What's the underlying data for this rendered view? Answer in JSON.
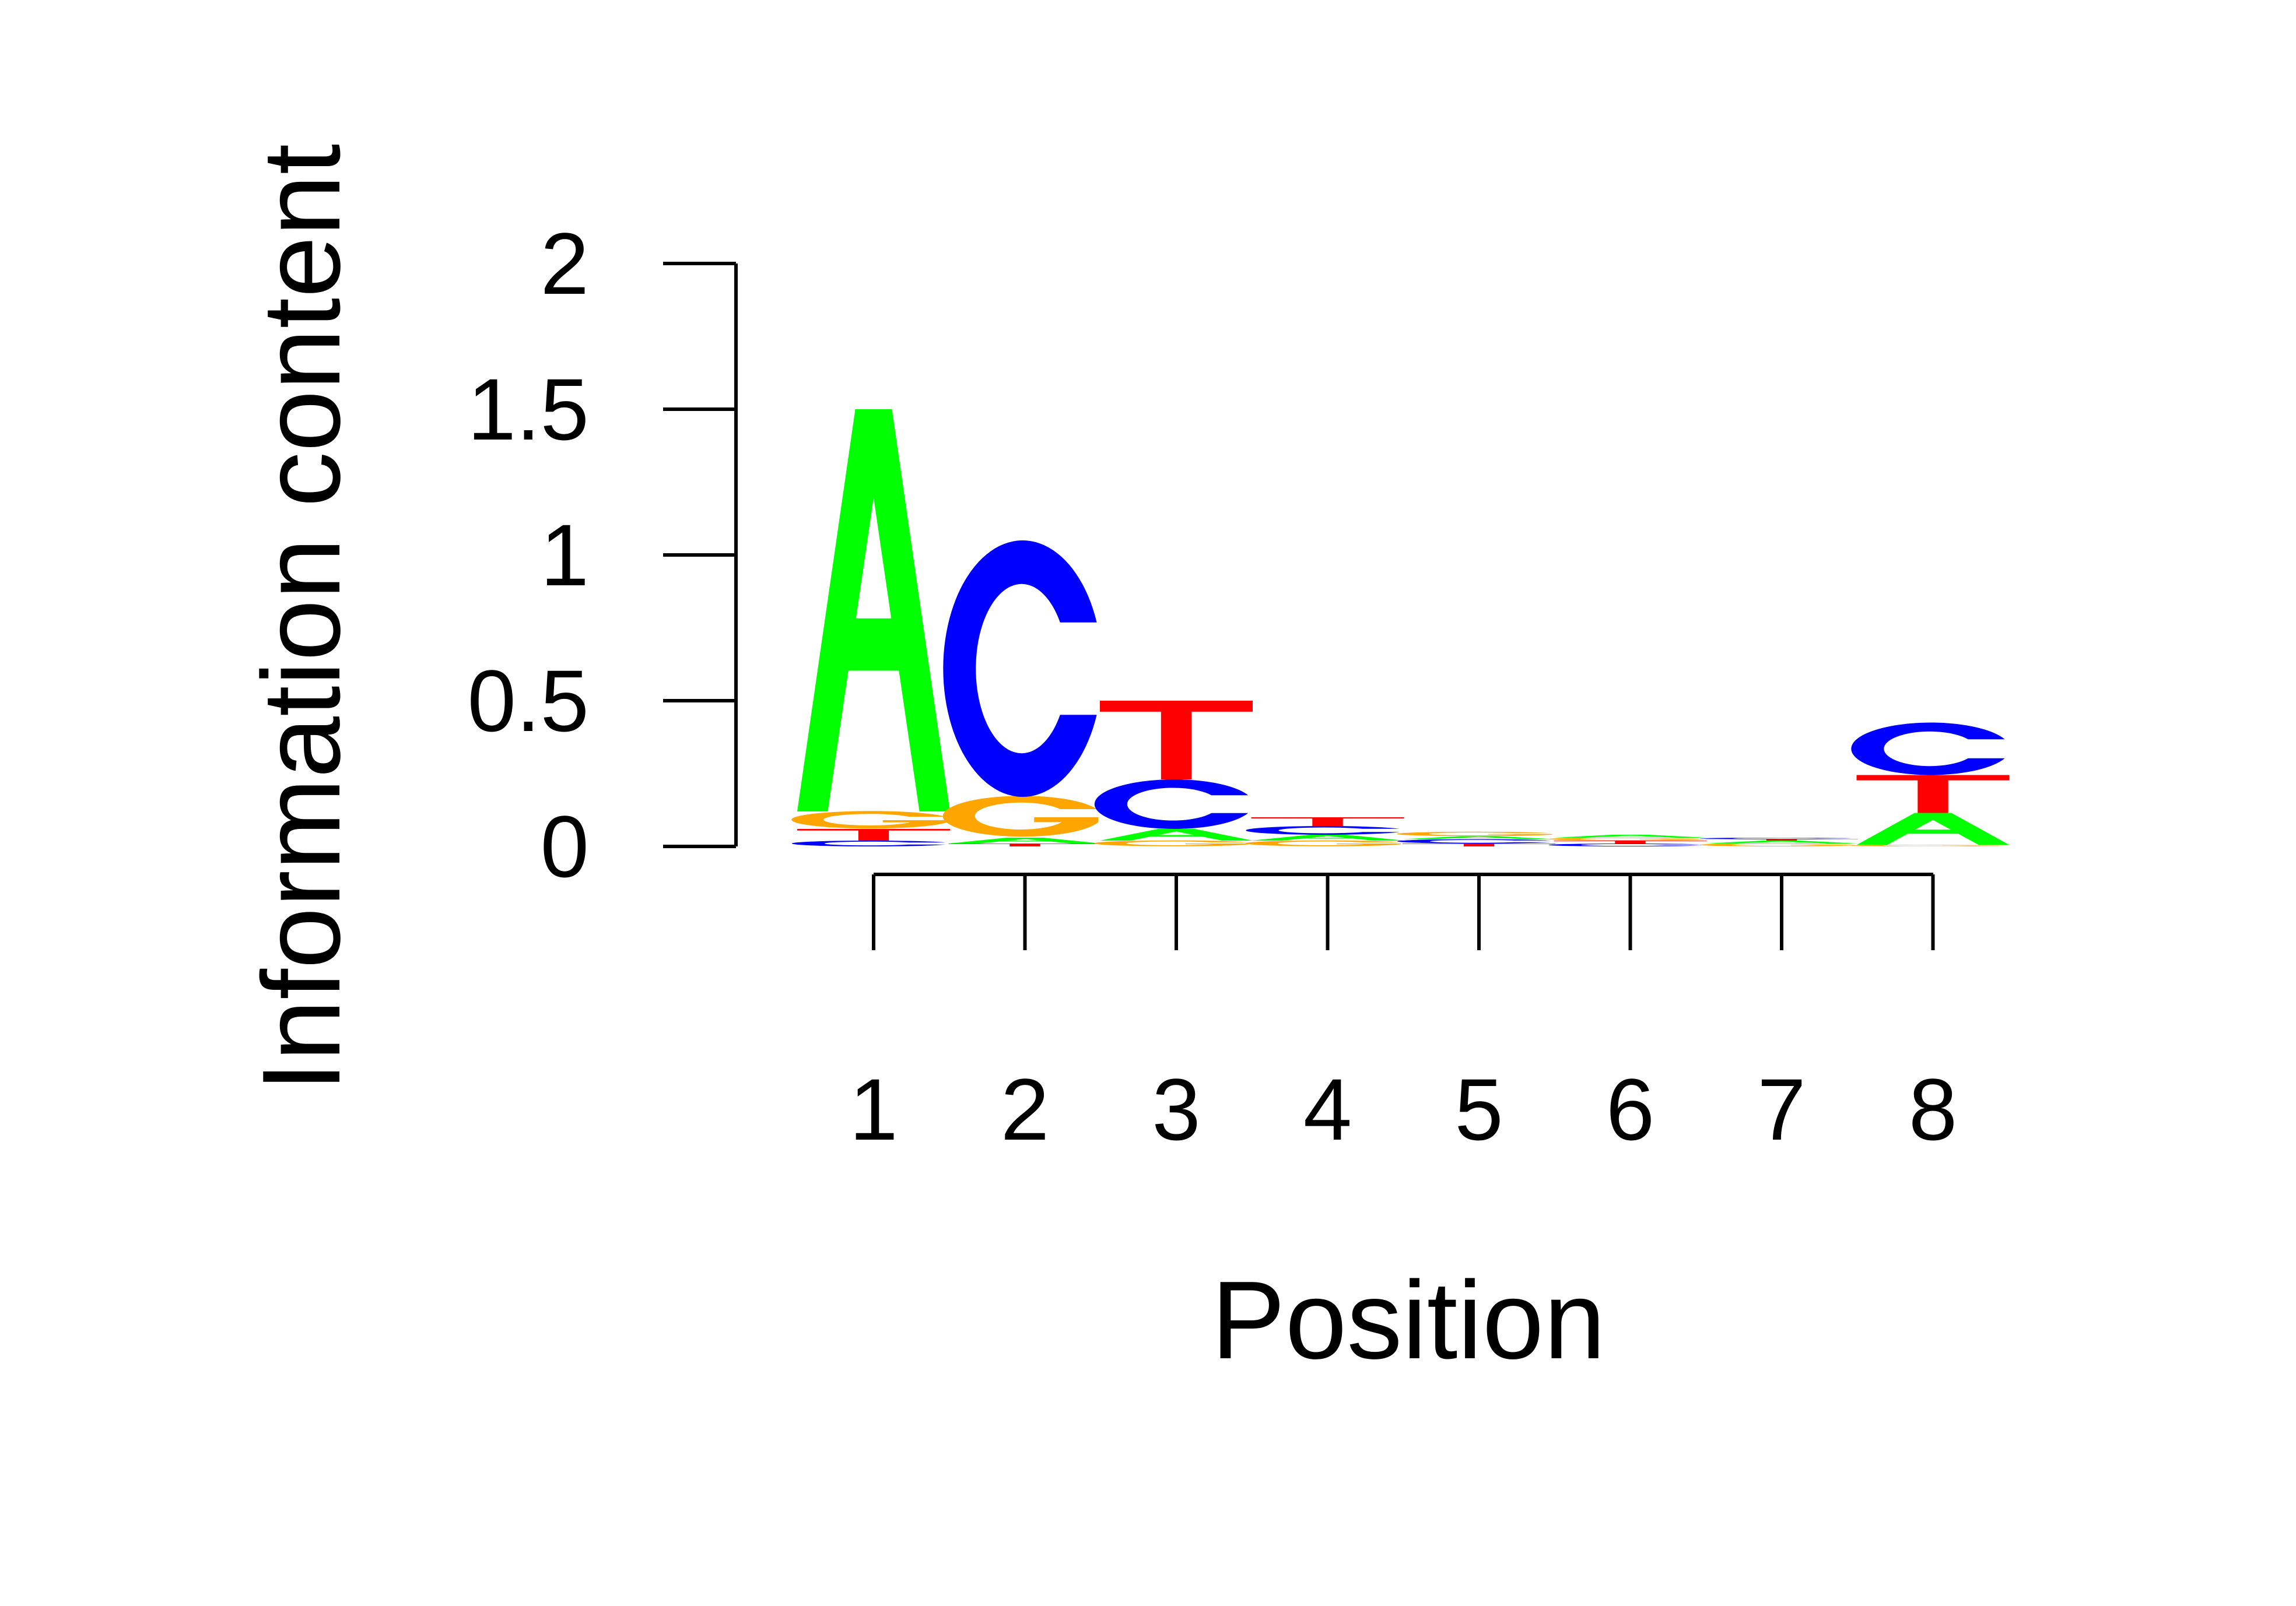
{
  "chart_data": {
    "type": "sequence-logo",
    "ylabel": "Information content",
    "xlabel": "Position",
    "ylim": [
      0,
      2
    ],
    "y_ticks": [
      "0",
      "0.5",
      "1",
      "1.5",
      "2"
    ],
    "positions": [
      "1",
      "2",
      "3",
      "4",
      "5",
      "6",
      "7",
      "8"
    ],
    "colors": {
      "A": "#00ff00",
      "C": "#0000ff",
      "G": "#ffa500",
      "T": "#ff0000"
    },
    "stacks": [
      [
        {
          "letter": "C",
          "value": 0.02
        },
        {
          "letter": "T",
          "value": 0.04
        },
        {
          "letter": "G",
          "value": 0.06
        },
        {
          "letter": "A",
          "value": 1.38
        }
      ],
      [
        {
          "letter": "T",
          "value": 0.01
        },
        {
          "letter": "A",
          "value": 0.02
        },
        {
          "letter": "G",
          "value": 0.14
        },
        {
          "letter": "C",
          "value": 0.88
        }
      ],
      [
        {
          "letter": "G",
          "value": 0.02
        },
        {
          "letter": "A",
          "value": 0.04
        },
        {
          "letter": "C",
          "value": 0.17
        },
        {
          "letter": "T",
          "value": 0.27
        }
      ],
      [
        {
          "letter": "G",
          "value": 0.02
        },
        {
          "letter": "A",
          "value": 0.02
        },
        {
          "letter": "C",
          "value": 0.03
        },
        {
          "letter": "T",
          "value": 0.03
        }
      ],
      [
        {
          "letter": "T",
          "value": 0.01
        },
        {
          "letter": "C",
          "value": 0.015
        },
        {
          "letter": "A",
          "value": 0.01
        },
        {
          "letter": "G",
          "value": 0.015
        }
      ],
      [
        {
          "letter": "C",
          "value": 0.01
        },
        {
          "letter": "T",
          "value": 0.01
        },
        {
          "letter": "G",
          "value": 0.01
        },
        {
          "letter": "A",
          "value": 0.01
        }
      ],
      [
        {
          "letter": "G",
          "value": 0.01
        },
        {
          "letter": "A",
          "value": 0.01
        },
        {
          "letter": "T",
          "value": 0.005
        },
        {
          "letter": "C",
          "value": 0.005
        }
      ],
      [
        {
          "letter": "G",
          "value": 0.005
        },
        {
          "letter": "A",
          "value": 0.11
        },
        {
          "letter": "T",
          "value": 0.13
        },
        {
          "letter": "C",
          "value": 0.18
        }
      ]
    ]
  }
}
